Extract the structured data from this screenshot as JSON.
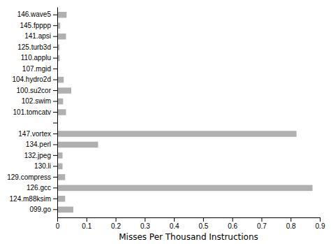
{
  "chart_data": {
    "type": "bar",
    "orientation": "horizontal",
    "categories": [
      "099.go",
      "124.m88ksim",
      "126.gcc",
      "129.compress",
      "130.li",
      "132.jpeg",
      "134.perl",
      "147.vortex",
      null,
      "101.tomcatv",
      "102.swim",
      "100.su2cor",
      "104.hydro2d",
      "107.mgid",
      "110.applu",
      "125.turb3d",
      "141.apsi",
      "145.fpppp",
      "146.wave5"
    ],
    "values": [
      0.055,
      0.027,
      0.875,
      0.027,
      0.018,
      0.018,
      0.14,
      0.82,
      0.0,
      0.03,
      0.02,
      0.048,
      0.022,
      0.002,
      0.008,
      0.007,
      0.03,
      0.01,
      0.032
    ],
    "color": "#b0b0b0",
    "xlabel": "Misses Per Thousand Instructions",
    "xlim": [
      0.0,
      0.9
    ],
    "xticks": [
      0.0,
      0.1,
      0.2,
      0.3,
      0.4,
      0.5,
      0.6,
      0.7,
      0.8,
      0.9
    ],
    "grid": false
  }
}
